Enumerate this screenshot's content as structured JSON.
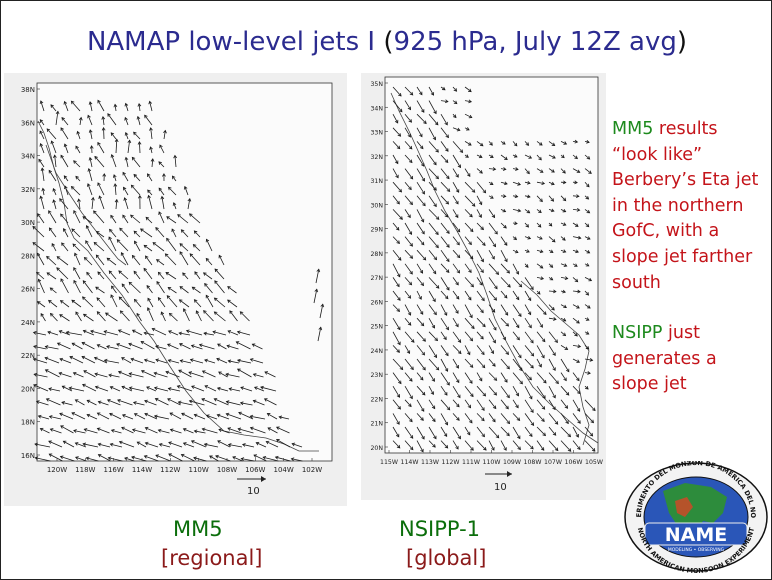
{
  "title": {
    "main": "NAMAP low-level jets I",
    "paren_open": "(",
    "detail": "925 hPa, July 12Z avg",
    "paren_close": ")"
  },
  "panels": {
    "mm5": {
      "lat_labels": [
        "38N",
        "36N",
        "34N",
        "32N",
        "30N",
        "28N",
        "26N",
        "24N",
        "22N",
        "20N",
        "18N",
        "16N"
      ],
      "lon_labels": [
        "120W",
        "118W",
        "116W",
        "114W",
        "112W",
        "110W",
        "108W",
        "106W",
        "104W",
        "102W"
      ],
      "scale_label": "10",
      "caption": "MM5",
      "subcaption": "[regional]"
    },
    "nsipp": {
      "lat_labels": [
        "35N",
        "34N",
        "33N",
        "32N",
        "31N",
        "30N",
        "29N",
        "28N",
        "27N",
        "26N",
        "25N",
        "24N",
        "23N",
        "22N",
        "21N",
        "20N"
      ],
      "lon_labels": [
        "115W",
        "114W",
        "113W",
        "112W",
        "111W",
        "110W",
        "109W",
        "108W",
        "107W",
        "106W",
        "105W"
      ],
      "scale_label": "10",
      "caption": "NSIPP-1",
      "subcaption": "[global]"
    }
  },
  "notes": {
    "p1_green": "MM5",
    "p1_red": " results “look like” Berbery’s Eta jet in the northern GofC, with a slope jet farther south",
    "p2_green": "NSIPP",
    "p2_red": " just generates a slope jet"
  },
  "logo": {
    "top_text": "EXPERIMENTO DEL MONZÓN DE AMÉRICA DEL NORTE",
    "bottom_text": "NORTH AMERICAN MONSOON EXPERIMENT",
    "name": "NAME",
    "band_text": "MODELING • OBSERVING"
  },
  "colors": {
    "title": "#2b2b8f",
    "green": "#1d8a1d",
    "red": "#c4141a",
    "caption_green": "#0b6e0b",
    "caption_dark": "#8b1a1a"
  }
}
